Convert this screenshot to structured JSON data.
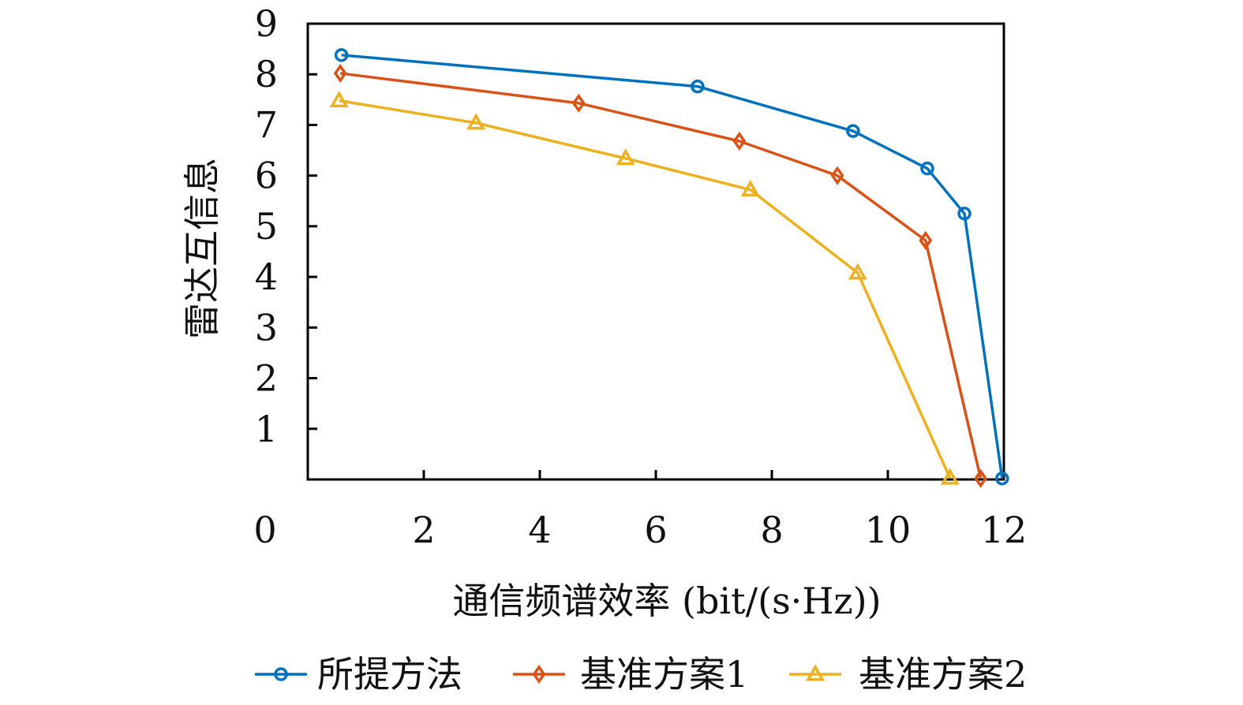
{
  "chart_data": {
    "type": "line",
    "title": "",
    "xlabel": "通信频谱效率 (bit/(s·Hz))",
    "ylabel": "雷达互信息",
    "xlim": [
      0,
      12
    ],
    "ylim": [
      0,
      9
    ],
    "xticks": [
      0,
      2,
      4,
      6,
      8,
      10,
      12
    ],
    "yticks": [
      1,
      2,
      3,
      4,
      5,
      6,
      7,
      8,
      9
    ],
    "grid": false,
    "legend_position": "bottom",
    "series": [
      {
        "name": "所提方法",
        "color": "#0072BD",
        "marker": "circle",
        "x": [
          0.58,
          6.72,
          9.4,
          10.68,
          11.32,
          11.97
        ],
        "y": [
          8.38,
          7.76,
          6.88,
          6.14,
          5.25,
          0.02
        ]
      },
      {
        "name": "基准方案1",
        "color": "#D95319",
        "marker": "diamond",
        "x": [
          0.56,
          4.67,
          7.44,
          9.13,
          10.65,
          11.6
        ],
        "y": [
          8.02,
          7.43,
          6.68,
          6.0,
          4.72,
          0.02
        ]
      },
      {
        "name": "基准方案2",
        "color": "#EDB120",
        "marker": "triangle",
        "x": [
          0.54,
          2.9,
          5.48,
          7.63,
          9.48,
          11.07
        ],
        "y": [
          7.48,
          7.04,
          6.34,
          5.72,
          4.08,
          0.03
        ]
      }
    ]
  }
}
